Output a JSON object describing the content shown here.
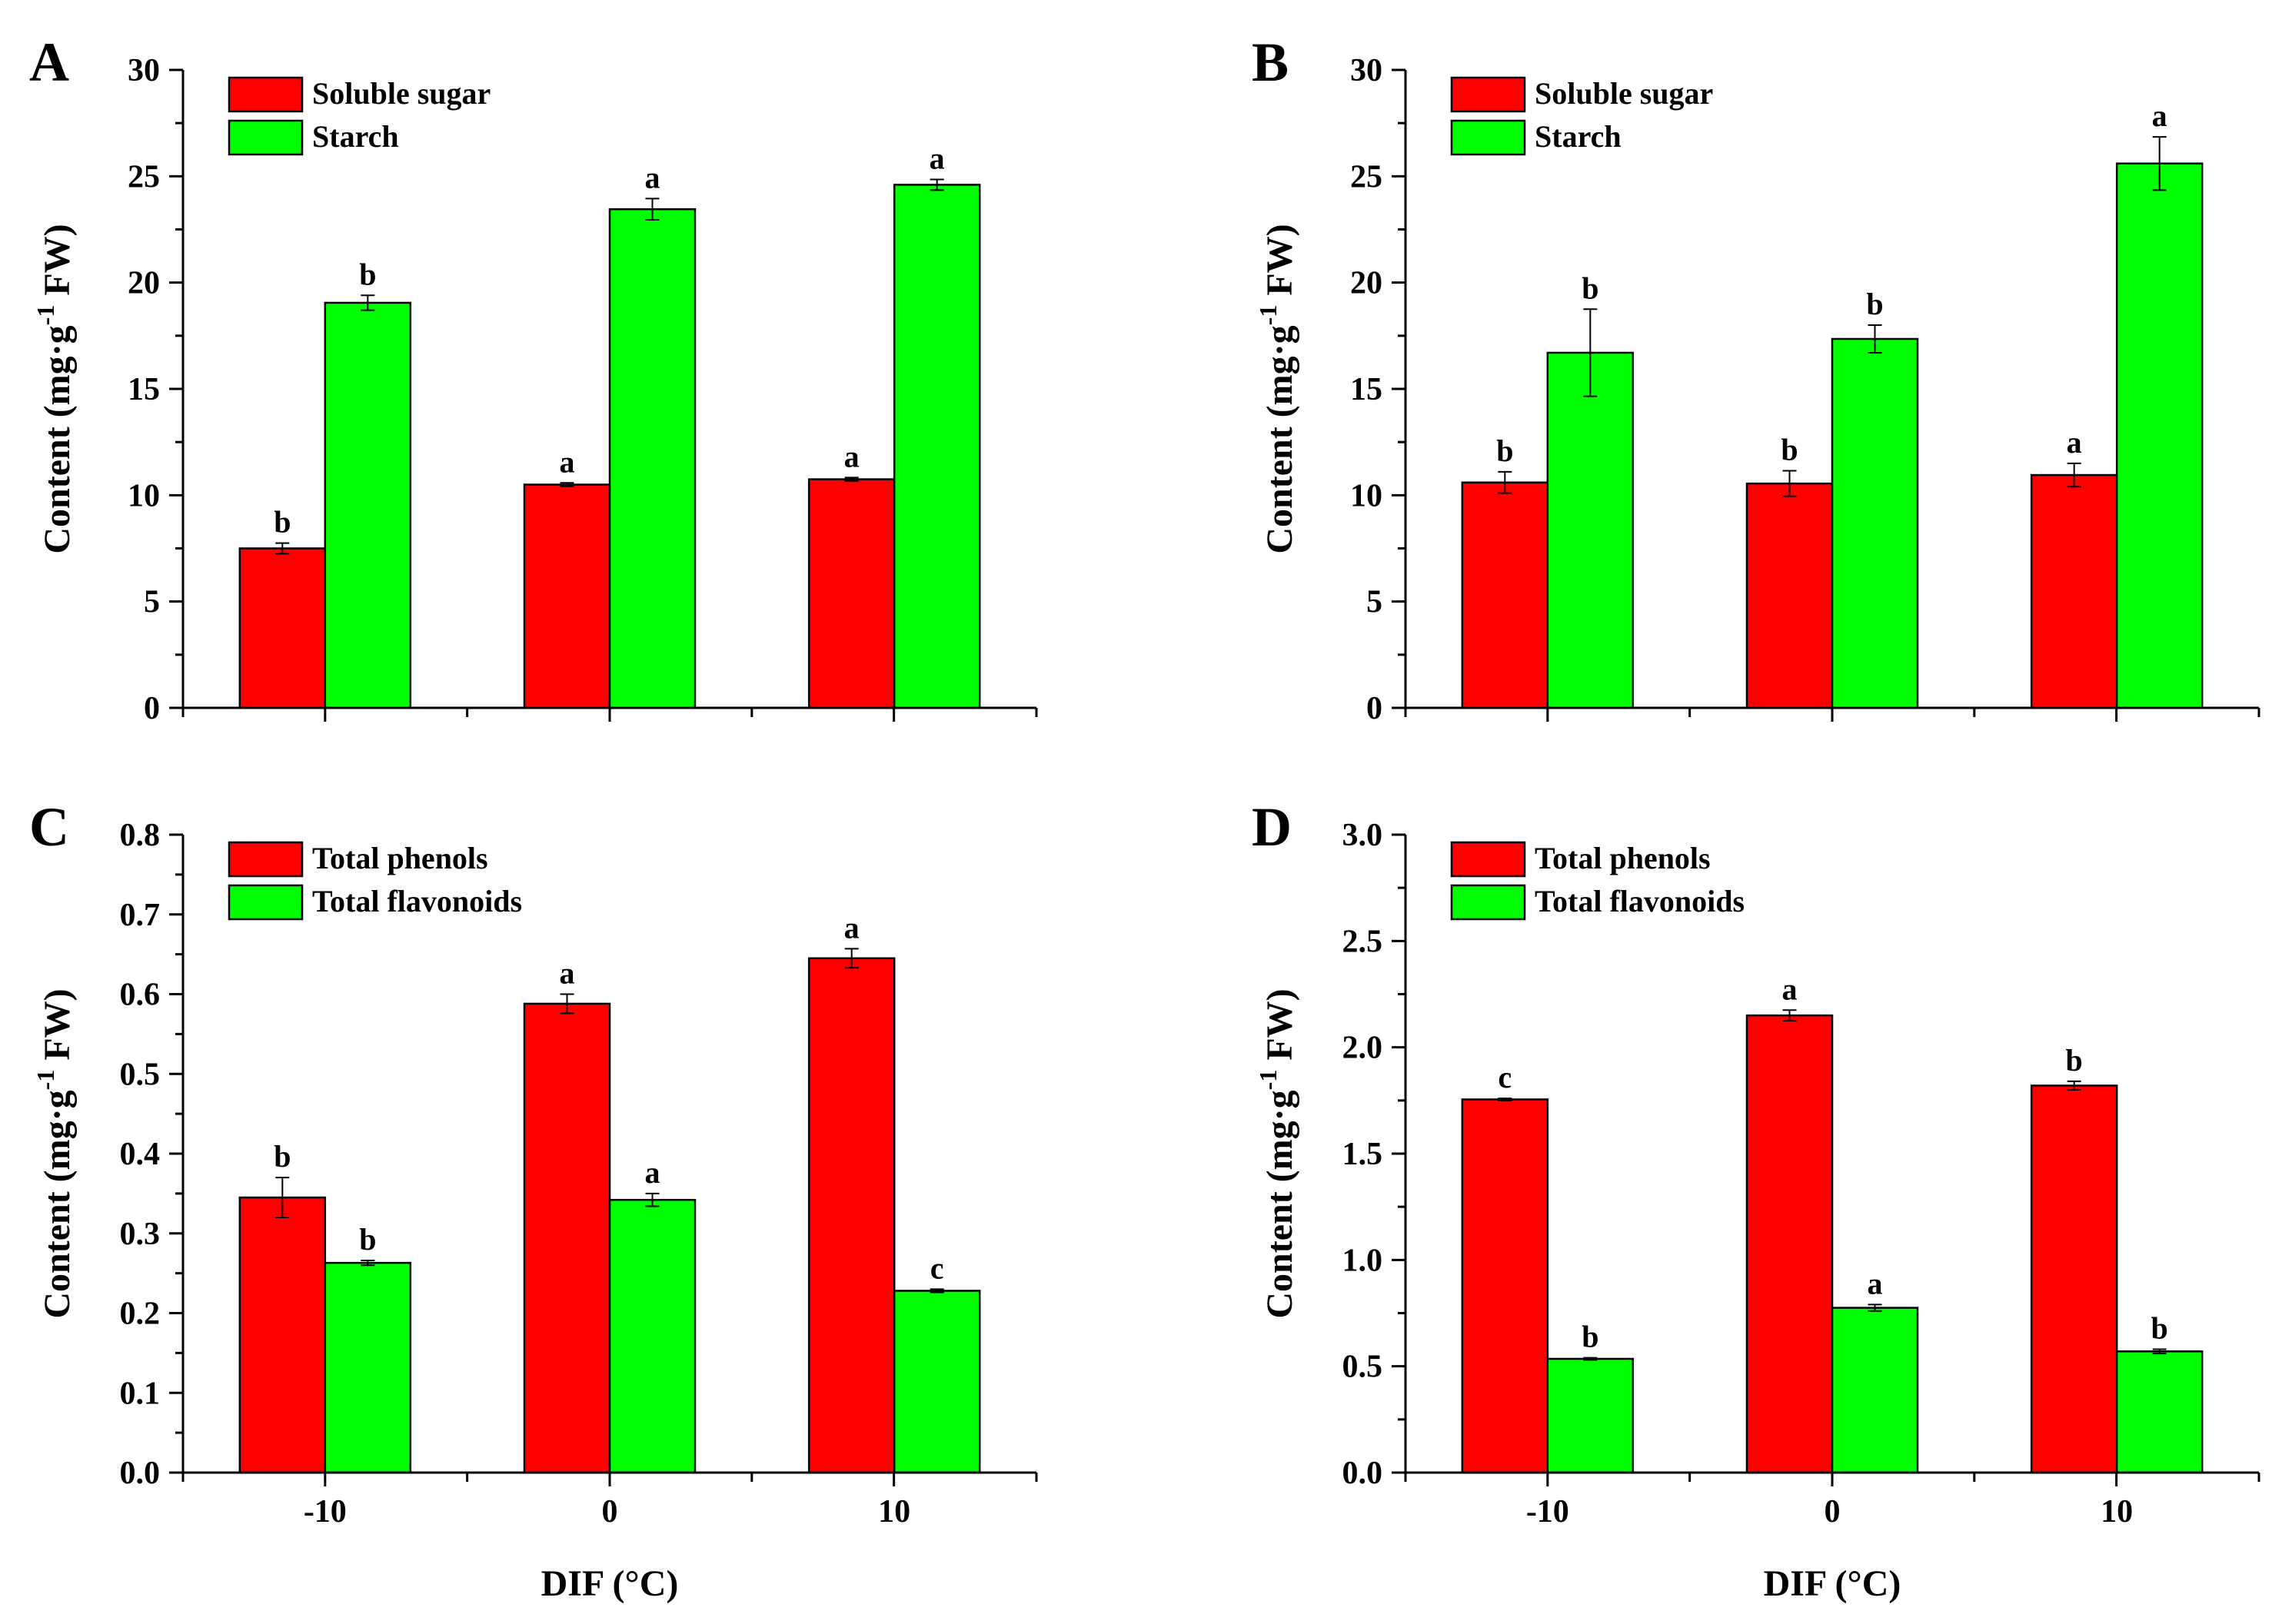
{
  "figure": {
    "colors": {
      "series_1": "#ff0000",
      "series_2": "#00ff00",
      "axis": "#000000"
    }
  },
  "chart_data": [
    {
      "panel": "A",
      "type": "bar",
      "categories": [
        "-10",
        "0",
        "10"
      ],
      "xlabel": "",
      "ylabel": "Content (mg·g-1 FW)",
      "ylim": [
        0,
        30
      ],
      "yticks": [
        0,
        5,
        10,
        15,
        20,
        25,
        30
      ],
      "ytick_labels": [
        "0",
        "5",
        "10",
        "15",
        "20",
        "25",
        "30"
      ],
      "legend_position": "top-left",
      "series": [
        {
          "name": "Soluble sugar",
          "color": "#ff0000",
          "values": [
            7.5,
            10.5,
            10.75
          ],
          "errors": [
            0.25,
            0.08,
            0.08
          ],
          "labels": [
            "b",
            "a",
            "a"
          ]
        },
        {
          "name": "Starch",
          "color": "#00ff00",
          "values": [
            19.05,
            23.45,
            24.6
          ],
          "errors": [
            0.35,
            0.5,
            0.25
          ],
          "labels": [
            "b",
            "a",
            "a"
          ]
        }
      ]
    },
    {
      "panel": "B",
      "type": "bar",
      "categories": [
        "-10",
        "0",
        "10"
      ],
      "xlabel": "",
      "ylabel": "Content (mg·g-1 FW)",
      "ylim": [
        0,
        30
      ],
      "yticks": [
        0,
        5,
        10,
        15,
        20,
        25,
        30
      ],
      "ytick_labels": [
        "0",
        "5",
        "10",
        "15",
        "20",
        "25",
        "30"
      ],
      "legend_position": "top-left",
      "series": [
        {
          "name": "Soluble sugar",
          "color": "#ff0000",
          "values": [
            10.6,
            10.55,
            10.95
          ],
          "errors": [
            0.5,
            0.6,
            0.55
          ],
          "labels": [
            "b",
            "b",
            "a"
          ]
        },
        {
          "name": "Starch",
          "color": "#00ff00",
          "values": [
            16.7,
            17.35,
            25.6
          ],
          "errors": [
            2.05,
            0.65,
            1.25
          ],
          "labels": [
            "b",
            "b",
            "a"
          ]
        }
      ]
    },
    {
      "panel": "C",
      "type": "bar",
      "categories": [
        "-10",
        "0",
        "10"
      ],
      "xlabel": "DIF (°C)",
      "ylabel": "Content (mg·g-1 FW)",
      "ylim": [
        0,
        0.8
      ],
      "yticks": [
        0,
        0.1,
        0.2,
        0.3,
        0.4,
        0.5,
        0.6,
        0.7,
        0.8
      ],
      "ytick_labels": [
        "0.0",
        "0.1",
        "0.2",
        "0.3",
        "0.4",
        "0.5",
        "0.6",
        "0.7",
        "0.8"
      ],
      "legend_position": "top-left",
      "series": [
        {
          "name": "Total phenols",
          "color": "#ff0000",
          "values": [
            0.345,
            0.588,
            0.645
          ],
          "errors": [
            0.025,
            0.012,
            0.012
          ],
          "labels": [
            "b",
            "a",
            "a"
          ]
        },
        {
          "name": "Total flavonoids",
          "color": "#00ff00",
          "values": [
            0.263,
            0.342,
            0.228
          ],
          "errors": [
            0.003,
            0.008,
            0.002
          ],
          "labels": [
            "b",
            "a",
            "c"
          ]
        }
      ]
    },
    {
      "panel": "D",
      "type": "bar",
      "categories": [
        "-10",
        "0",
        "10"
      ],
      "xlabel": "DIF (°C)",
      "ylabel": "Content (mg·g-1 FW)",
      "ylim": [
        0,
        3.0
      ],
      "yticks": [
        0,
        0.5,
        1.0,
        1.5,
        2.0,
        2.5,
        3.0
      ],
      "ytick_labels": [
        "0.0",
        "0.5",
        "1.0",
        "1.5",
        "2.0",
        "2.5",
        "3.0"
      ],
      "legend_position": "top-left",
      "series": [
        {
          "name": "Total phenols",
          "color": "#ff0000",
          "values": [
            1.755,
            2.15,
            1.82
          ],
          "errors": [
            0.005,
            0.025,
            0.02
          ],
          "labels": [
            "c",
            "a",
            "b"
          ]
        },
        {
          "name": "Total flavonoids",
          "color": "#00ff00",
          "values": [
            0.535,
            0.775,
            0.57
          ],
          "errors": [
            0.005,
            0.015,
            0.01
          ],
          "labels": [
            "b",
            "a",
            "b"
          ]
        }
      ]
    }
  ]
}
